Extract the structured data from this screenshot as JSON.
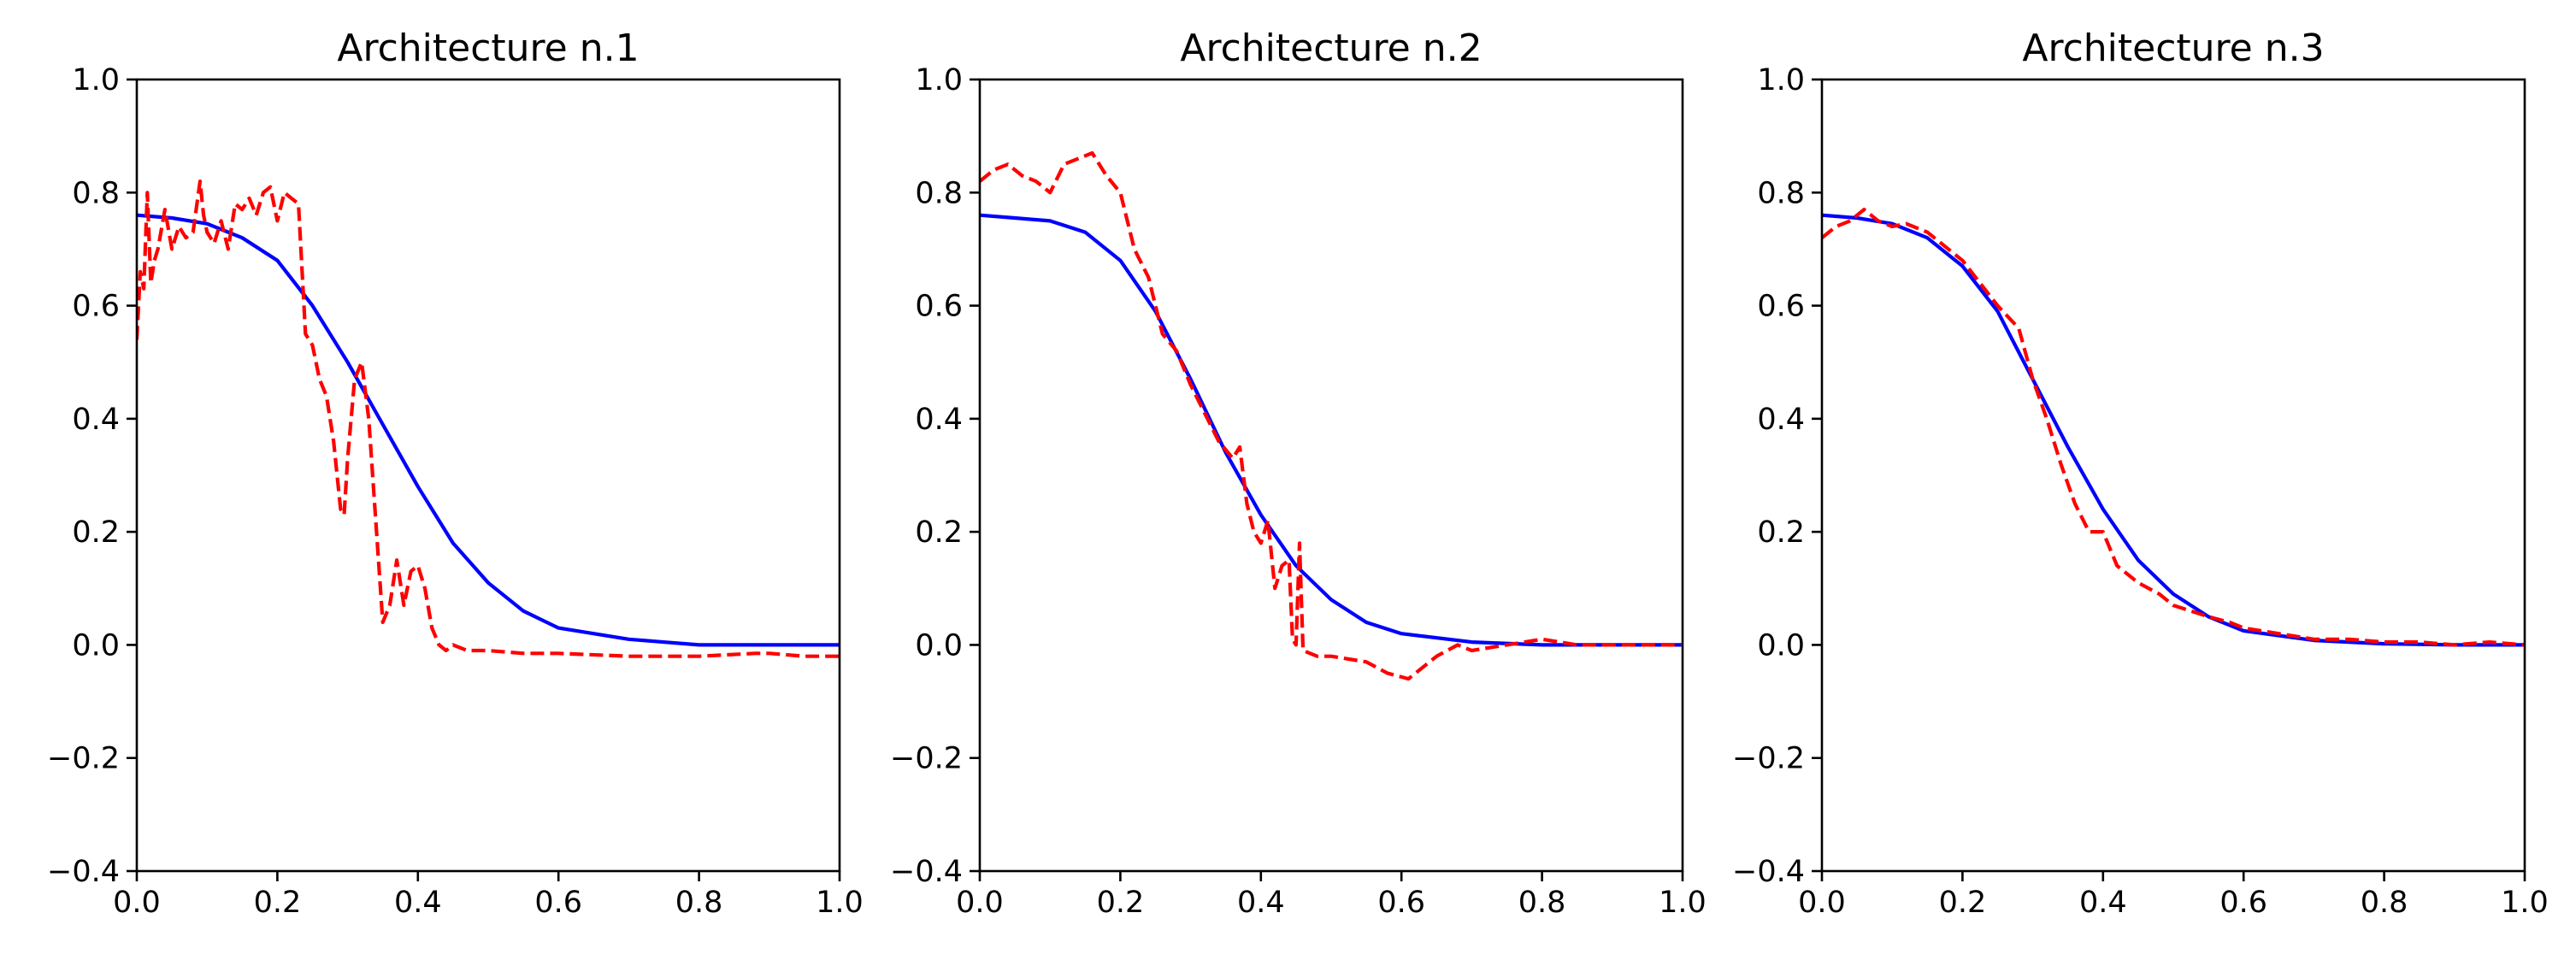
{
  "colors": {
    "reference": "#0000ff",
    "prediction": "#ff0000",
    "axes": "#000000",
    "background": "#ffffff"
  },
  "chart_data": [
    {
      "type": "line",
      "title": "Architecture n.1",
      "xlabel": "",
      "ylabel": "",
      "xlim": [
        0.0,
        1.0
      ],
      "ylim": [
        -0.4,
        1.0
      ],
      "xticks": [
        "0.0",
        "0.2",
        "0.4",
        "0.6",
        "0.8",
        "1.0"
      ],
      "yticks": [
        "−0.4",
        "−0.2",
        "0.0",
        "0.2",
        "0.4",
        "0.6",
        "0.8",
        "1.0"
      ],
      "grid": false,
      "series": [
        {
          "style": "solid",
          "color": "#0000ff",
          "x": [
            0.0,
            0.05,
            0.1,
            0.15,
            0.2,
            0.25,
            0.3,
            0.35,
            0.4,
            0.45,
            0.5,
            0.55,
            0.6,
            0.7,
            0.8,
            0.9,
            1.0
          ],
          "y": [
            0.76,
            0.755,
            0.745,
            0.72,
            0.68,
            0.6,
            0.5,
            0.39,
            0.28,
            0.18,
            0.11,
            0.06,
            0.03,
            0.01,
            0.0,
            0.0,
            0.0
          ]
        },
        {
          "style": "dashed",
          "color": "#ff0000",
          "x": [
            0.0,
            0.005,
            0.01,
            0.015,
            0.02,
            0.025,
            0.03,
            0.04,
            0.05,
            0.06,
            0.07,
            0.08,
            0.09,
            0.095,
            0.1,
            0.11,
            0.12,
            0.13,
            0.14,
            0.15,
            0.16,
            0.17,
            0.18,
            0.19,
            0.2,
            0.21,
            0.22,
            0.23,
            0.24,
            0.25,
            0.26,
            0.27,
            0.28,
            0.29,
            0.295,
            0.3,
            0.31,
            0.32,
            0.33,
            0.34,
            0.35,
            0.36,
            0.37,
            0.38,
            0.39,
            0.4,
            0.41,
            0.42,
            0.43,
            0.44,
            0.45,
            0.47,
            0.5,
            0.55,
            0.6,
            0.7,
            0.8,
            0.88,
            0.9,
            0.95,
            1.0
          ],
          "y": [
            0.54,
            0.66,
            0.63,
            0.8,
            0.64,
            0.68,
            0.7,
            0.77,
            0.7,
            0.74,
            0.72,
            0.73,
            0.82,
            0.76,
            0.73,
            0.71,
            0.75,
            0.7,
            0.78,
            0.77,
            0.79,
            0.76,
            0.8,
            0.81,
            0.75,
            0.8,
            0.79,
            0.78,
            0.55,
            0.53,
            0.47,
            0.44,
            0.36,
            0.24,
            0.23,
            0.33,
            0.47,
            0.5,
            0.4,
            0.22,
            0.04,
            0.07,
            0.15,
            0.07,
            0.13,
            0.14,
            0.1,
            0.03,
            0.0,
            -0.01,
            0.0,
            -0.01,
            -0.01,
            -0.015,
            -0.015,
            -0.02,
            -0.02,
            -0.015,
            -0.015,
            -0.02,
            -0.02
          ]
        }
      ]
    },
    {
      "type": "line",
      "title": "Architecture n.2",
      "xlabel": "",
      "ylabel": "",
      "xlim": [
        0.0,
        1.0
      ],
      "ylim": [
        -0.4,
        1.0
      ],
      "xticks": [
        "0.0",
        "0.2",
        "0.4",
        "0.6",
        "0.8",
        "1.0"
      ],
      "yticks": [
        "−0.4",
        "−0.2",
        "0.0",
        "0.2",
        "0.4",
        "0.6",
        "0.8",
        "1.0"
      ],
      "grid": false,
      "series": [
        {
          "style": "solid",
          "color": "#0000ff",
          "x": [
            0.0,
            0.05,
            0.1,
            0.15,
            0.2,
            0.25,
            0.3,
            0.35,
            0.4,
            0.45,
            0.5,
            0.55,
            0.6,
            0.7,
            0.8,
            0.9,
            1.0
          ],
          "y": [
            0.76,
            0.755,
            0.75,
            0.73,
            0.68,
            0.59,
            0.47,
            0.34,
            0.23,
            0.14,
            0.08,
            0.04,
            0.02,
            0.005,
            0.0,
            0.0,
            0.0
          ]
        },
        {
          "style": "dashed",
          "color": "#ff0000",
          "x": [
            0.0,
            0.02,
            0.04,
            0.06,
            0.08,
            0.1,
            0.12,
            0.14,
            0.16,
            0.18,
            0.2,
            0.22,
            0.24,
            0.26,
            0.28,
            0.3,
            0.32,
            0.34,
            0.36,
            0.37,
            0.38,
            0.39,
            0.4,
            0.41,
            0.42,
            0.43,
            0.44,
            0.445,
            0.45,
            0.455,
            0.46,
            0.48,
            0.5,
            0.55,
            0.58,
            0.61,
            0.63,
            0.65,
            0.68,
            0.7,
            0.75,
            0.8,
            0.85,
            0.9,
            0.95,
            1.0
          ],
          "y": [
            0.82,
            0.84,
            0.85,
            0.83,
            0.82,
            0.8,
            0.85,
            0.86,
            0.87,
            0.83,
            0.8,
            0.7,
            0.65,
            0.55,
            0.52,
            0.46,
            0.41,
            0.36,
            0.33,
            0.35,
            0.25,
            0.2,
            0.18,
            0.22,
            0.1,
            0.14,
            0.15,
            0.01,
            0.0,
            0.18,
            -0.01,
            -0.02,
            -0.02,
            -0.03,
            -0.05,
            -0.06,
            -0.04,
            -0.02,
            0.0,
            -0.01,
            0.0,
            0.01,
            0.0,
            0.0,
            0.0,
            0.0
          ]
        }
      ]
    },
    {
      "type": "line",
      "title": "Architecture n.3",
      "xlabel": "",
      "ylabel": "",
      "xlim": [
        0.0,
        1.0
      ],
      "ylim": [
        -0.4,
        1.0
      ],
      "xticks": [
        "0.0",
        "0.2",
        "0.4",
        "0.6",
        "0.8",
        "1.0"
      ],
      "yticks": [
        "−0.4",
        "−0.2",
        "0.0",
        "0.2",
        "0.4",
        "0.6",
        "0.8",
        "1.0"
      ],
      "grid": false,
      "series": [
        {
          "style": "solid",
          "color": "#0000ff",
          "x": [
            0.0,
            0.05,
            0.1,
            0.15,
            0.2,
            0.25,
            0.3,
            0.35,
            0.4,
            0.45,
            0.5,
            0.55,
            0.6,
            0.7,
            0.8,
            0.9,
            1.0
          ],
          "y": [
            0.76,
            0.755,
            0.745,
            0.72,
            0.67,
            0.59,
            0.47,
            0.35,
            0.24,
            0.15,
            0.09,
            0.05,
            0.025,
            0.008,
            0.002,
            0.0,
            0.0
          ]
        },
        {
          "style": "dashed",
          "color": "#ff0000",
          "x": [
            0.0,
            0.02,
            0.04,
            0.06,
            0.08,
            0.1,
            0.12,
            0.15,
            0.2,
            0.25,
            0.28,
            0.3,
            0.32,
            0.34,
            0.36,
            0.38,
            0.4,
            0.42,
            0.45,
            0.48,
            0.5,
            0.55,
            0.58,
            0.6,
            0.65,
            0.7,
            0.75,
            0.8,
            0.85,
            0.9,
            0.95,
            1.0
          ],
          "y": [
            0.72,
            0.74,
            0.75,
            0.77,
            0.75,
            0.74,
            0.745,
            0.73,
            0.68,
            0.6,
            0.56,
            0.47,
            0.4,
            0.32,
            0.25,
            0.2,
            0.2,
            0.14,
            0.11,
            0.09,
            0.07,
            0.05,
            0.04,
            0.03,
            0.02,
            0.01,
            0.01,
            0.005,
            0.005,
            0.0,
            0.005,
            0.0
          ]
        }
      ]
    }
  ]
}
